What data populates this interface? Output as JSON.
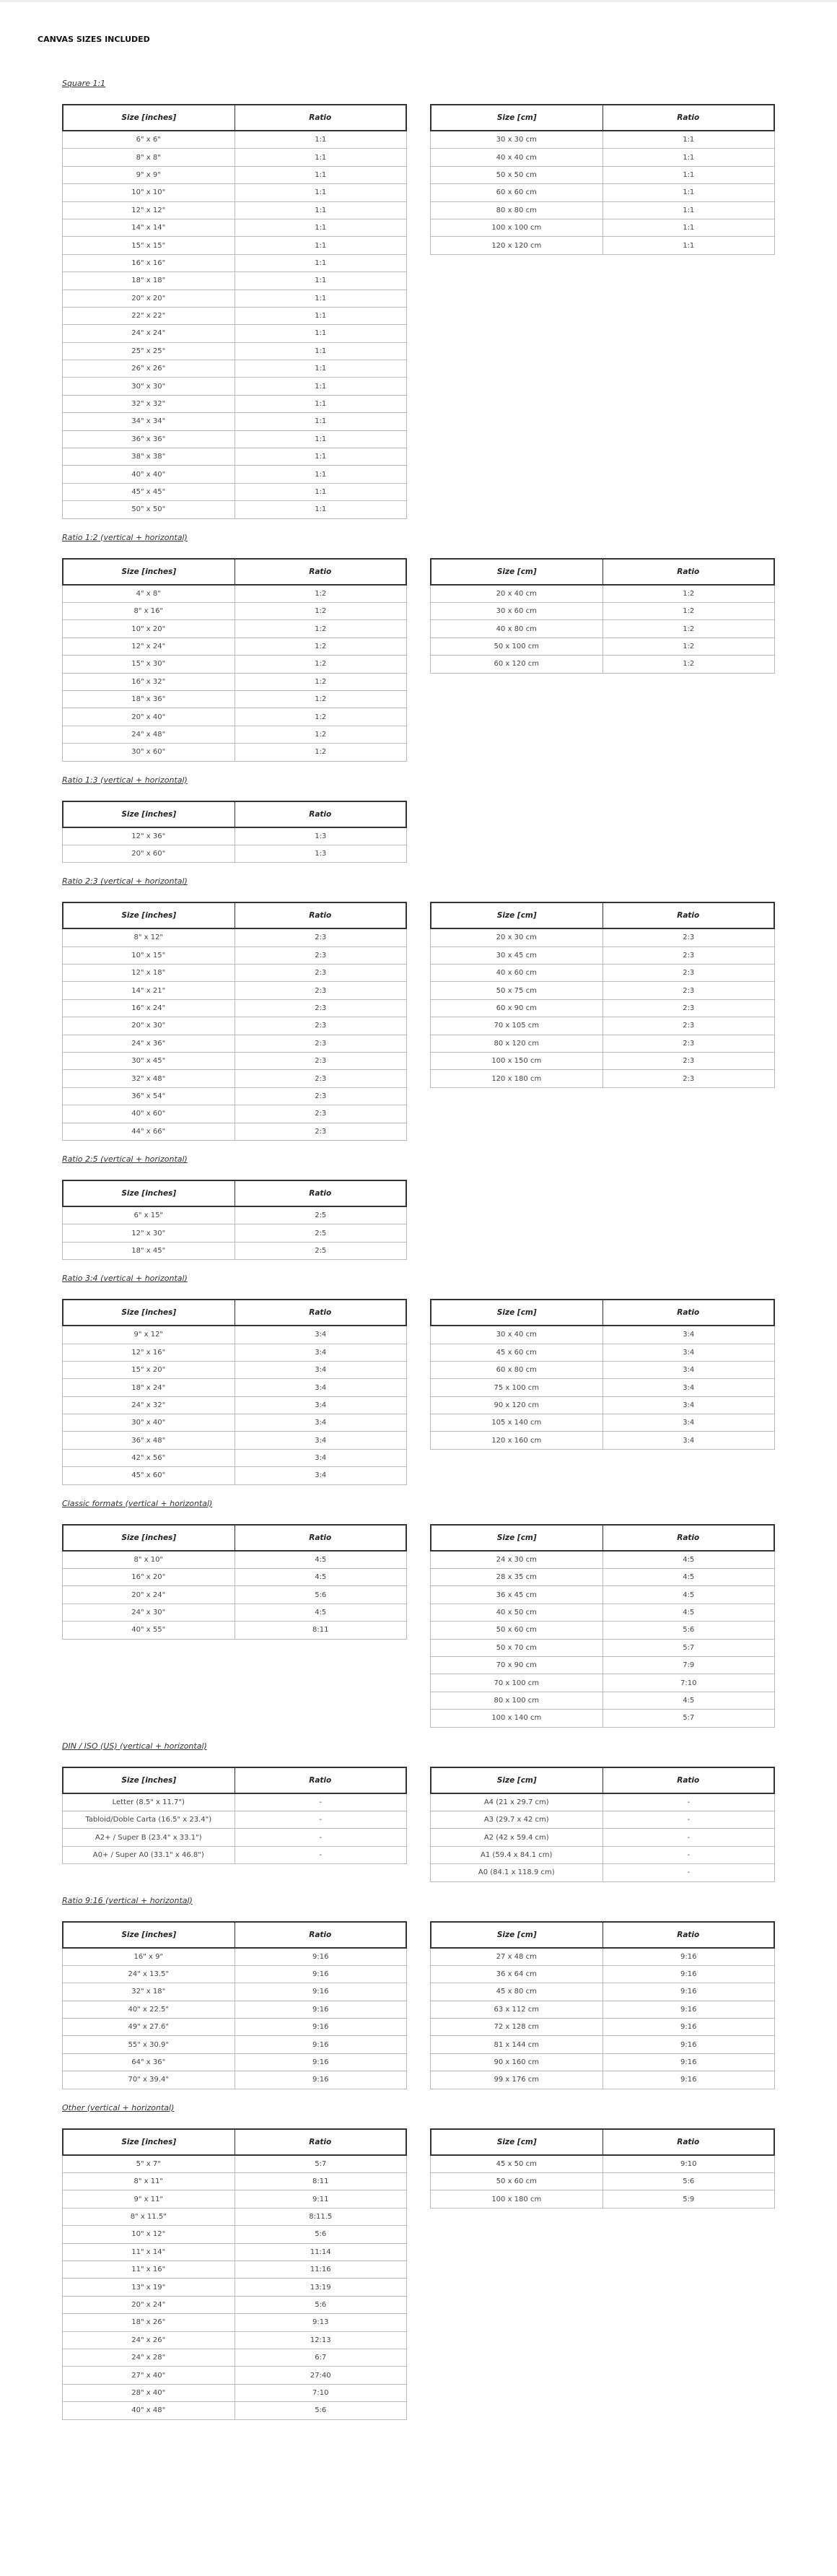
{
  "header": {
    "title": "CANVAS SIZES INCLUDED"
  },
  "sections": [
    {
      "title": "Square 1:1",
      "left": {
        "headers": [
          "Size [inches]",
          "Ratio"
        ],
        "rows": [
          [
            "6\" x 6\"",
            "1:1"
          ],
          [
            "8\" x 8\"",
            "1:1"
          ],
          [
            "9\" x 9\"",
            "1:1"
          ],
          [
            "10\" x 10\"",
            "1:1"
          ],
          [
            "12\" x 12\"",
            "1:1"
          ],
          [
            "14\" x 14\"",
            "1:1"
          ],
          [
            "15\" x 15\"",
            "1:1"
          ],
          [
            "16\" x 16\"",
            "1:1"
          ],
          [
            "18\" x 18\"",
            "1:1"
          ],
          [
            "20\" x 20\"",
            "1:1"
          ],
          [
            "22\" x 22\"",
            "1:1"
          ],
          [
            "24\" x 24\"",
            "1:1"
          ],
          [
            "25\" x 25\"",
            "1:1"
          ],
          [
            "26\" x 26\"",
            "1:1"
          ],
          [
            "30\" x 30\"",
            "1:1"
          ],
          [
            "32\" x 32\"",
            "1:1"
          ],
          [
            "34\" x 34\"",
            "1:1"
          ],
          [
            "36\" x 36\"",
            "1:1"
          ],
          [
            "38\" x 38\"",
            "1:1"
          ],
          [
            "40\" x 40\"",
            "1:1"
          ],
          [
            "45\" x 45\"",
            "1:1"
          ],
          [
            "50\" x 50\"",
            "1:1"
          ]
        ]
      },
      "right": {
        "headers": [
          "Size [cm]",
          "Ratio"
        ],
        "rows": [
          [
            "30 x 30 cm",
            "1:1"
          ],
          [
            "40 x 40 cm",
            "1:1"
          ],
          [
            "50 x 50 cm",
            "1:1"
          ],
          [
            "60 x 60 cm",
            "1:1"
          ],
          [
            "80 x 80 cm",
            "1:1"
          ],
          [
            "100 x 100 cm",
            "1:1"
          ],
          [
            "120 x 120 cm",
            "1:1"
          ]
        ]
      }
    },
    {
      "title": "Ratio 1:2 (vertical + horizontal)",
      "left": {
        "headers": [
          "Size [inches]",
          "Ratio"
        ],
        "rows": [
          [
            "4\" x 8\"",
            "1:2"
          ],
          [
            "8\" x 16\"",
            "1:2"
          ],
          [
            "10\" x 20\"",
            "1:2"
          ],
          [
            "12\" x 24\"",
            "1:2"
          ],
          [
            "15\" x 30\"",
            "1:2"
          ],
          [
            "16\" x 32\"",
            "1:2"
          ],
          [
            "18\" x 36\"",
            "1:2"
          ],
          [
            "20\" x 40\"",
            "1:2"
          ],
          [
            "24\" x 48\"",
            "1:2"
          ],
          [
            "30\" x 60\"",
            "1:2"
          ]
        ]
      },
      "right": {
        "headers": [
          "Size [cm]",
          "Ratio"
        ],
        "rows": [
          [
            "20 x 40 cm",
            "1:2"
          ],
          [
            "30 x 60 cm",
            "1:2"
          ],
          [
            "40 x 80 cm",
            "1:2"
          ],
          [
            "50 x 100 cm",
            "1:2"
          ],
          [
            "60 x 120 cm",
            "1:2"
          ]
        ]
      }
    },
    {
      "title": "Ratio 1:3 (vertical + horizontal)",
      "left": {
        "headers": [
          "Size [inches]",
          "Ratio"
        ],
        "rows": [
          [
            "12\" x 36\"",
            "1:3"
          ],
          [
            "20\" x 60\"",
            "1:3"
          ]
        ]
      }
    },
    {
      "title": "Ratio 2:3 (vertical + horizontal)",
      "left": {
        "headers": [
          "Size [inches]",
          "Ratio"
        ],
        "rows": [
          [
            "8\" x 12\"",
            "2:3"
          ],
          [
            "10\" x 15\"",
            "2:3"
          ],
          [
            "12\" x 18\"",
            "2:3"
          ],
          [
            "14\" x 21\"",
            "2:3"
          ],
          [
            "16\" x 24\"",
            "2:3"
          ],
          [
            "20\" x 30\"",
            "2:3"
          ],
          [
            "24\" x 36\"",
            "2:3"
          ],
          [
            "30\" x 45\"",
            "2:3"
          ],
          [
            "32\" x 48\"",
            "2:3"
          ],
          [
            "36\" x 54\"",
            "2:3"
          ],
          [
            "40\" x 60\"",
            "2:3"
          ],
          [
            "44\" x 66\"",
            "2:3"
          ]
        ]
      },
      "right": {
        "headers": [
          "Size [cm]",
          "Ratio"
        ],
        "rows": [
          [
            "20 x 30 cm",
            "2:3"
          ],
          [
            "30 x 45 cm",
            "2:3"
          ],
          [
            "40 x 60 cm",
            "2:3"
          ],
          [
            "50 x 75 cm",
            "2:3"
          ],
          [
            "60 x 90 cm",
            "2:3"
          ],
          [
            "70 x 105 cm",
            "2:3"
          ],
          [
            "80 x 120 cm",
            "2:3"
          ],
          [
            "100 x 150 cm",
            "2:3"
          ],
          [
            "120 x 180 cm",
            "2:3"
          ]
        ]
      }
    },
    {
      "title": "Ratio 2:5 (vertical + horizontal)",
      "left": {
        "headers": [
          "Size [inches]",
          "Ratio"
        ],
        "rows": [
          [
            "6\" x 15\"",
            "2:5"
          ],
          [
            "12\" x 30\"",
            "2:5"
          ],
          [
            "18\" x 45\"",
            "2:5"
          ]
        ]
      }
    },
    {
      "title": "Ratio 3:4 (vertical + horizontal)",
      "left": {
        "headers": [
          "Size [inches]",
          "Ratio"
        ],
        "rows": [
          [
            "9\" x 12\"",
            "3:4"
          ],
          [
            "12\" x 16\"",
            "3:4"
          ],
          [
            "15\" x 20\"",
            "3:4"
          ],
          [
            "18\" x 24\"",
            "3:4"
          ],
          [
            "24\" x 32\"",
            "3:4"
          ],
          [
            "30\" x 40\"",
            "3:4"
          ],
          [
            "36\" x 48\"",
            "3:4"
          ],
          [
            "42\" x 56\"",
            "3:4"
          ],
          [
            "45\" x 60\"",
            "3:4"
          ]
        ]
      },
      "right": {
        "headers": [
          "Size [cm]",
          "Ratio"
        ],
        "rows": [
          [
            "30 x 40 cm",
            "3:4"
          ],
          [
            "45 x 60 cm",
            "3:4"
          ],
          [
            "60 x 80 cm",
            "3:4"
          ],
          [
            "75 x 100 cm",
            "3:4"
          ],
          [
            "90 x 120 cm",
            "3:4"
          ],
          [
            "105 x 140 cm",
            "3:4"
          ],
          [
            "120 x 160 cm",
            "3:4"
          ]
        ]
      }
    },
    {
      "title": "Classic formats (vertical + horizontal)",
      "left": {
        "headers": [
          "Size [inches]",
          "Ratio"
        ],
        "rows": [
          [
            "8\" x 10\"",
            "4:5"
          ],
          [
            "16\" x 20\"",
            "4:5"
          ],
          [
            "20\" x 24\"",
            "5:6"
          ],
          [
            "24\" x 30\"",
            "4:5"
          ],
          [
            "40\" x 55\"",
            "8:11"
          ]
        ]
      },
      "right": {
        "headers": [
          "Size [cm]",
          "Ratio"
        ],
        "rows": [
          [
            "24 x 30 cm",
            "4:5"
          ],
          [
            "28 x 35 cm",
            "4:5"
          ],
          [
            "36 x 45 cm",
            "4:5"
          ],
          [
            "40 x 50 cm",
            "4:5"
          ],
          [
            "50 x 60 cm",
            "5:6"
          ],
          [
            "50 x 70 cm",
            "5:7"
          ],
          [
            "70 x 90 cm",
            "7:9"
          ],
          [
            "70 x 100 cm",
            "7:10"
          ],
          [
            "80 x 100 cm",
            "4:5"
          ],
          [
            "100 x 140 cm",
            "5:7"
          ]
        ]
      }
    },
    {
      "title": "DIN / ISO (US) (vertical + horizontal)",
      "left": {
        "headers": [
          "Size [inches]",
          "Ratio"
        ],
        "rows": [
          [
            "Letter (8.5\" x 11.7\")",
            "-"
          ],
          [
            "Tabloid/Doble Carta (16.5\" x 23.4\")",
            "-"
          ],
          [
            "A2+ / Super B (23.4\" x 33.1\")",
            "-"
          ],
          [
            "A0+ / Super A0 (33.1\" x 46.8\")",
            "-"
          ]
        ]
      },
      "right": {
        "headers": [
          "Size [cm]",
          "Ratio"
        ],
        "rows": [
          [
            "A4 (21 x 29.7 cm)",
            "-"
          ],
          [
            "A3 (29.7 x 42 cm)",
            "-"
          ],
          [
            "A2 (42 x 59.4 cm)",
            "-"
          ],
          [
            "A1 (59.4 x 84.1 cm)",
            "-"
          ],
          [
            "A0 (84.1 x 118.9 cm)",
            "-"
          ]
        ]
      }
    },
    {
      "title": "Ratio 9:16 (vertical + horizontal)",
      "left": {
        "headers": [
          "Size [inches]",
          "Ratio"
        ],
        "rows": [
          [
            "16\" x 9\"",
            "9:16"
          ],
          [
            "24\" x 13.5\"",
            "9:16"
          ],
          [
            "32\" x 18\"",
            "9:16"
          ],
          [
            "40\" x 22.5\"",
            "9:16"
          ],
          [
            "49\" x 27.6\"",
            "9:16"
          ],
          [
            "55\" x 30.9\"",
            "9:16"
          ],
          [
            "64\" x 36\"",
            "9:16"
          ],
          [
            "70\" x 39.4\"",
            "9:16"
          ]
        ]
      },
      "right": {
        "headers": [
          "Size [cm]",
          "Ratio"
        ],
        "rows": [
          [
            "27 x 48 cm",
            "9:16"
          ],
          [
            "36 x 64 cm",
            "9:16"
          ],
          [
            "45 x 80 cm",
            "9:16"
          ],
          [
            "63 x 112 cm",
            "9:16"
          ],
          [
            "72 x 128 cm",
            "9:16"
          ],
          [
            "81 x 144 cm",
            "9:16"
          ],
          [
            "90 x 160 cm",
            "9:16"
          ],
          [
            "99 x 176 cm",
            "9:16"
          ]
        ]
      }
    },
    {
      "title": "Other (vertical + horizontal)",
      "left": {
        "headers": [
          "Size [inches]",
          "Ratio"
        ],
        "rows": [
          [
            "5\" x 7\"",
            "5:7"
          ],
          [
            "8\" x 11\"",
            "8:11"
          ],
          [
            "9\" x 11\"",
            "9:11"
          ],
          [
            "8\" x 11.5\"",
            "8:11.5"
          ],
          [
            "10\" x 12\"",
            "5:6"
          ],
          [
            "11\" x 14\"",
            "11:14"
          ],
          [
            "11\" x 16\"",
            "11:16"
          ],
          [
            "13\" x 19\"",
            "13:19"
          ],
          [
            "20\" x 24\"",
            "5:6"
          ],
          [
            "18\" x 26\"",
            "9:13"
          ],
          [
            "24\" x 26\"",
            "12:13"
          ],
          [
            "24\" x 28\"",
            "6:7"
          ],
          [
            "27\" x 40\"",
            "27:40"
          ],
          [
            "28\" x 40\"",
            "7:10"
          ],
          [
            "40\" x 48\"",
            "5:6"
          ]
        ]
      },
      "right": {
        "headers": [
          "Size [cm]",
          "Ratio"
        ],
        "rows": [
          [
            "45 x 50 cm",
            "9:10"
          ],
          [
            "50 x 60 cm",
            "5:6"
          ],
          [
            "100 x 180 cm",
            "5:9"
          ]
        ]
      }
    }
  ]
}
